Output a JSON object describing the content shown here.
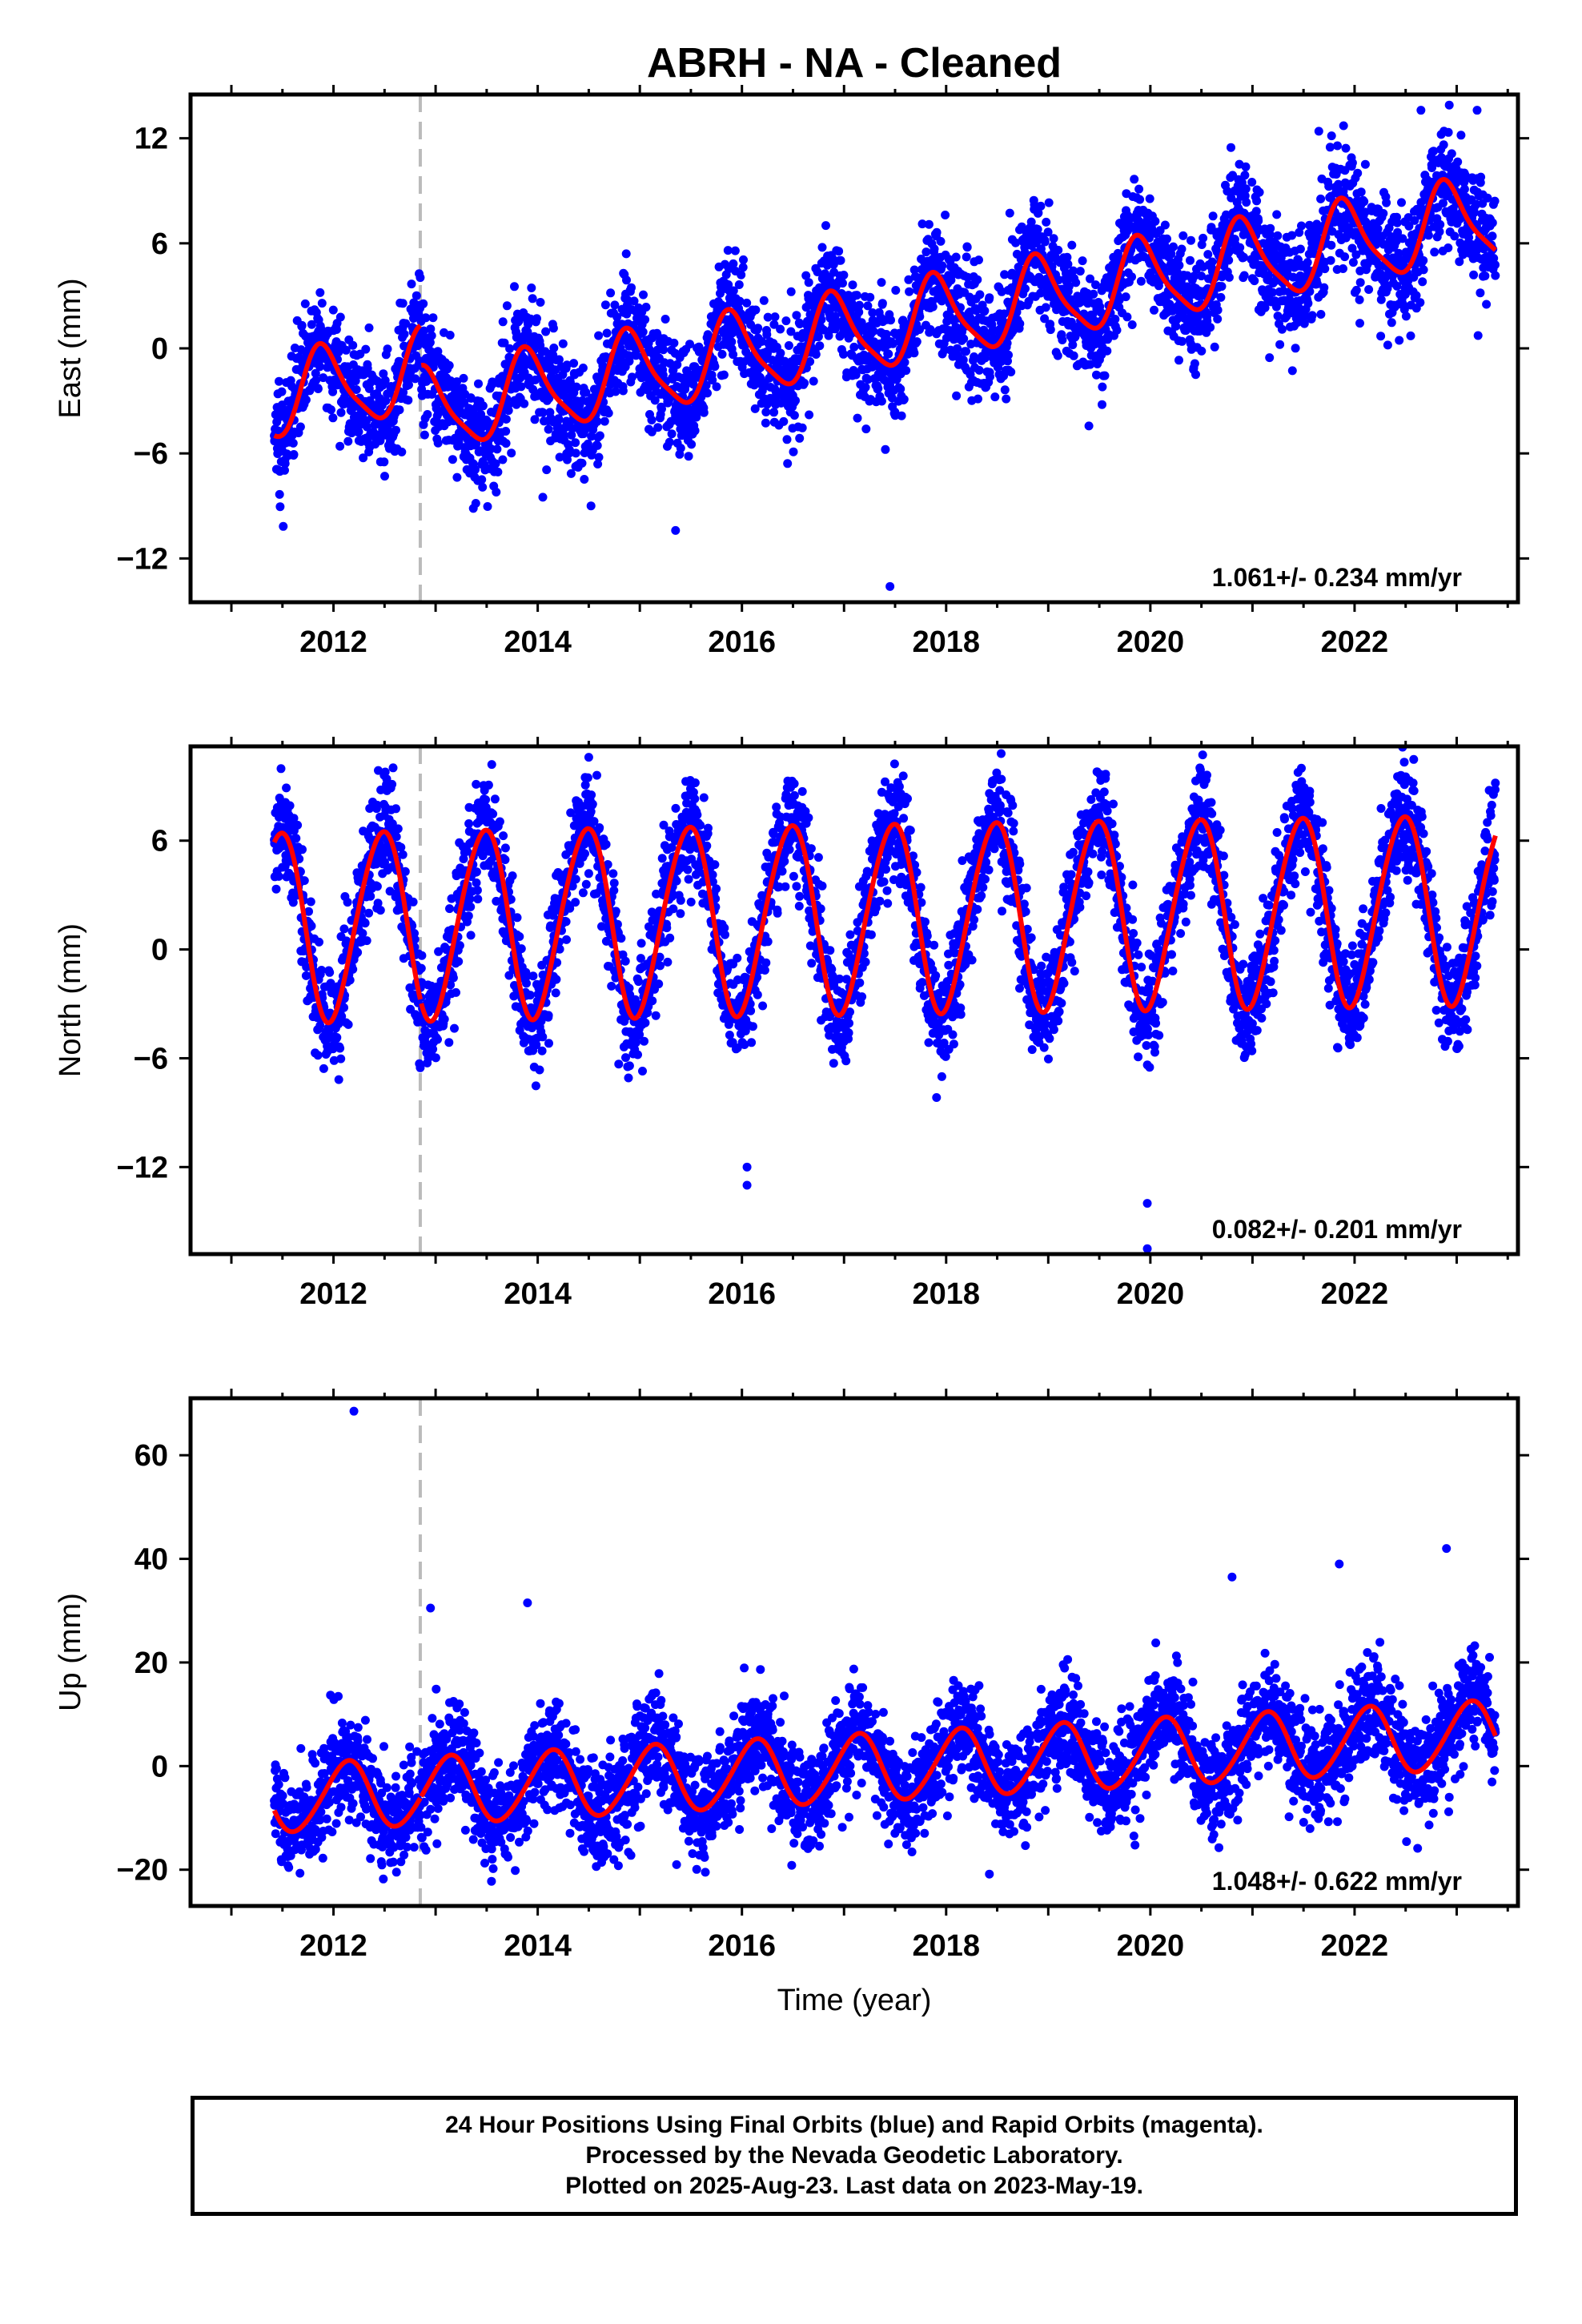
{
  "title": "ABRH  - NA - Cleaned",
  "xlabel": "Time (year)",
  "colors": {
    "points": "#0000ff",
    "fit": "#ff0000",
    "event_line": "#bbbbbb",
    "axes": "#000000"
  },
  "caption": [
    "24 Hour Positions Using Final Orbits (blue) and Rapid Orbits (magenta).",
    "Processed by the Nevada Geodetic Laboratory.",
    "Plotted on 2025-Aug-23. Last data on 2023-May-19."
  ],
  "chart_data": [
    {
      "type": "scatter",
      "panel": "east",
      "ylabel": "East (mm)",
      "rate_label": "1.061+/- 0.234 mm/yr",
      "xlim": [
        2010.6,
        2023.6
      ],
      "ylim": [
        -14.5,
        14.5
      ],
      "xticks": [
        2012,
        2014,
        2016,
        2018,
        2020,
        2022
      ],
      "yticks": [
        -12,
        -6,
        0,
        6,
        12
      ],
      "event_line_x": 2012.85,
      "data_start": 2011.42,
      "data_end": 2023.38,
      "fit": {
        "intercept": -2.9,
        "rate": 1.061,
        "ref_year": 2011.4,
        "annual_amp": 2.3,
        "annual_phase": 0.65,
        "semiannual_amp": 0.5,
        "semiannual_phase": 0.2,
        "offset_at_event": -2.3,
        "scatter_sd": 1.6
      },
      "outliers": [
        [
          2017.45,
          -13.6
        ],
        [
          2015.35,
          -10.4
        ],
        [
          2014.05,
          -8.5
        ],
        [
          2022.65,
          13.6
        ],
        [
          2023.2,
          13.6
        ],
        [
          2021.65,
          12.4
        ]
      ]
    },
    {
      "type": "scatter",
      "panel": "north",
      "ylabel": "North (mm)",
      "rate_label": "0.082+/- 0.201 mm/yr",
      "xlim": [
        2010.6,
        2023.6
      ],
      "ylim": [
        -16.8,
        11.2
      ],
      "xticks": [
        2012,
        2014,
        2016,
        2018,
        2020,
        2022
      ],
      "yticks": [
        -12,
        -6,
        0,
        6
      ],
      "event_line_x": 2012.85,
      "data_start": 2011.42,
      "data_end": 2023.38,
      "fit": {
        "intercept": 1.3,
        "rate": 0.082,
        "ref_year": 2011.4,
        "annual_amp": 5.2,
        "annual_phase": 0.22,
        "semiannual_amp": 0.4,
        "semiannual_phase": 0.0,
        "offset_at_event": 0.0,
        "scatter_sd": 1.5
      },
      "outliers": [
        [
          2019.97,
          -16.5
        ],
        [
          2019.97,
          -14.0
        ],
        [
          2016.05,
          -13.0
        ],
        [
          2016.05,
          -12.0
        ],
        [
          2014.5,
          10.6
        ],
        [
          2013.55,
          10.2
        ]
      ]
    },
    {
      "type": "scatter",
      "panel": "up",
      "ylabel": "Up (mm)",
      "rate_label": "1.048+/- 0.622 mm/yr",
      "xlim": [
        2010.6,
        2023.6
      ],
      "ylim": [
        -27,
        71
      ],
      "xticks": [
        2012,
        2014,
        2016,
        2018,
        2020,
        2022
      ],
      "yticks": [
        -20,
        0,
        20,
        40,
        60
      ],
      "event_line_x": 2012.85,
      "data_start": 2011.42,
      "data_end": 2023.38,
      "fit": {
        "intercept": -6.5,
        "rate": 1.048,
        "ref_year": 2011.4,
        "annual_amp": 6.5,
        "annual_phase": 0.88,
        "semiannual_amp": 0.6,
        "semiannual_phase": 0.1,
        "offset_at_event": 0.0,
        "scatter_sd": 5.0
      },
      "outliers": [
        [
          2012.2,
          68.5
        ],
        [
          2013.9,
          31.5
        ],
        [
          2012.95,
          30.5
        ],
        [
          2022.9,
          42.0
        ],
        [
          2021.85,
          39.0
        ],
        [
          2020.8,
          36.5
        ]
      ]
    }
  ]
}
